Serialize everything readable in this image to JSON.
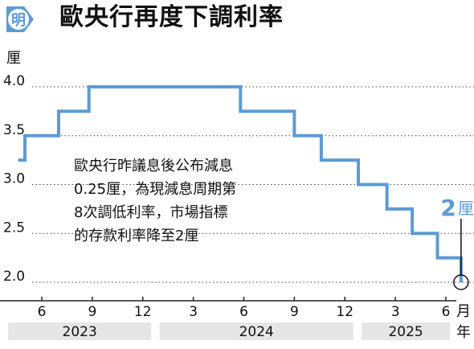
{
  "badge": {
    "label": "明",
    "color": "#5b9bd5"
  },
  "title": "歐央行再度下調利率",
  "chart_data": {
    "type": "line",
    "step": true,
    "ylabel": "厘",
    "ylim": [
      2.0,
      4.0
    ],
    "yticks": [
      "4.0",
      "3.5",
      "3.0",
      "2.5",
      "2.0"
    ],
    "ytick_values": [
      4.0,
      3.5,
      3.0,
      2.5,
      2.0
    ],
    "xticks": [
      {
        "label": "6",
        "x": 6
      },
      {
        "label": "9",
        "x": 9
      },
      {
        "label": "12",
        "x": 12
      },
      {
        "label": "3",
        "x": 15
      },
      {
        "label": "6",
        "x": 18
      },
      {
        "label": "9",
        "x": 21
      },
      {
        "label": "12",
        "x": 24
      },
      {
        "label": "3",
        "x": 27
      },
      {
        "label": "6",
        "x": 30
      }
    ],
    "xlabel_unit": "月",
    "year_unit": "年",
    "years": [
      {
        "label": "2023",
        "start": 4,
        "end": 12.5
      },
      {
        "label": "2024",
        "start": 13,
        "end": 24.5
      },
      {
        "label": "2025",
        "start": 25,
        "end": 31
      }
    ],
    "series": [
      {
        "color": "#5b9bd5",
        "points": [
          {
            "x": 4.6,
            "y": 3.25
          },
          {
            "x": 5.0,
            "y": 3.5
          },
          {
            "x": 7.0,
            "y": 3.75
          },
          {
            "x": 8.8,
            "y": 4.0
          },
          {
            "x": 17.8,
            "y": 3.75
          },
          {
            "x": 21.0,
            "y": 3.5
          },
          {
            "x": 22.6,
            "y": 3.25
          },
          {
            "x": 24.8,
            "y": 3.0
          },
          {
            "x": 26.5,
            "y": 2.75
          },
          {
            "x": 28.0,
            "y": 2.5
          },
          {
            "x": 29.5,
            "y": 2.25
          },
          {
            "x": 30.9,
            "y": 2.0
          }
        ],
        "end_x": 30.9
      }
    ],
    "annotation": {
      "lines": [
        "歐央行昨議息後公布減息",
        "0.25厘，為現減息周期第",
        "8次調低利率，市場指標",
        "的存款利率降至2厘"
      ]
    },
    "end_label": {
      "value": "2",
      "unit": "厘"
    },
    "grid": "horizontal-dotted"
  }
}
